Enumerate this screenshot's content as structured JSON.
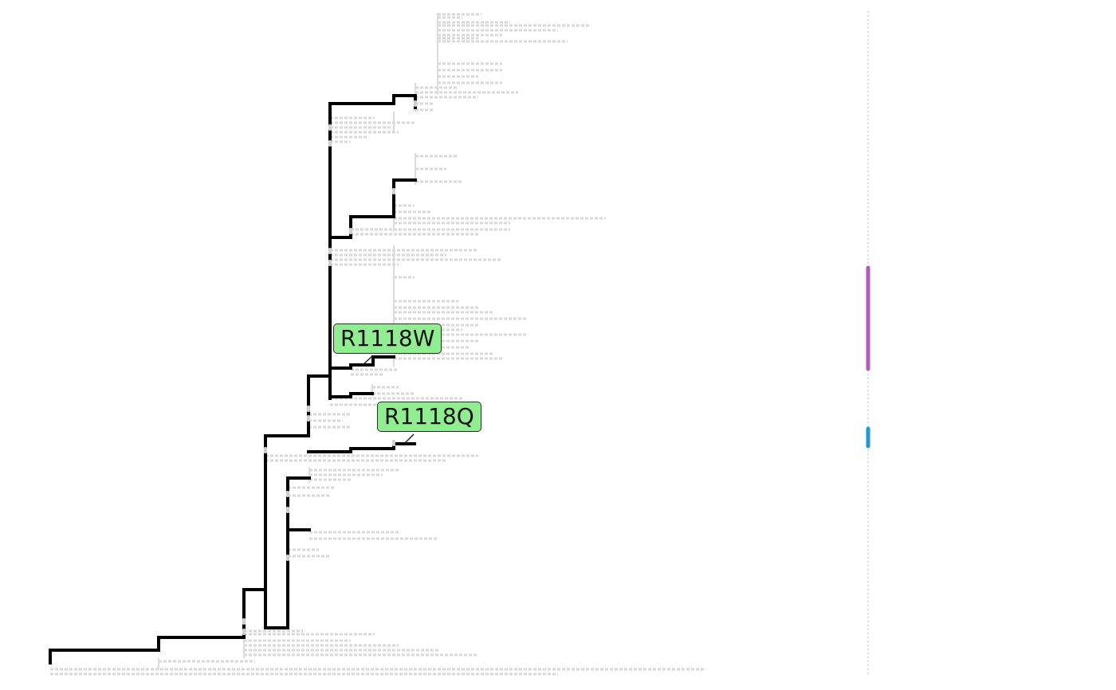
{
  "mutations": [
    {
      "label": "R1118W",
      "marker_color": "#90ee90"
    },
    {
      "label": "R1118Q",
      "marker_color": "#90ee90"
    }
  ],
  "colors": {
    "highlighted_lineage": "#000000",
    "background_tree": "#d9d9d9",
    "clade_bar_1": "#b35cbf",
    "clade_bar_2": "#1a9ad6",
    "axis_line": "#c8d3dc"
  }
}
